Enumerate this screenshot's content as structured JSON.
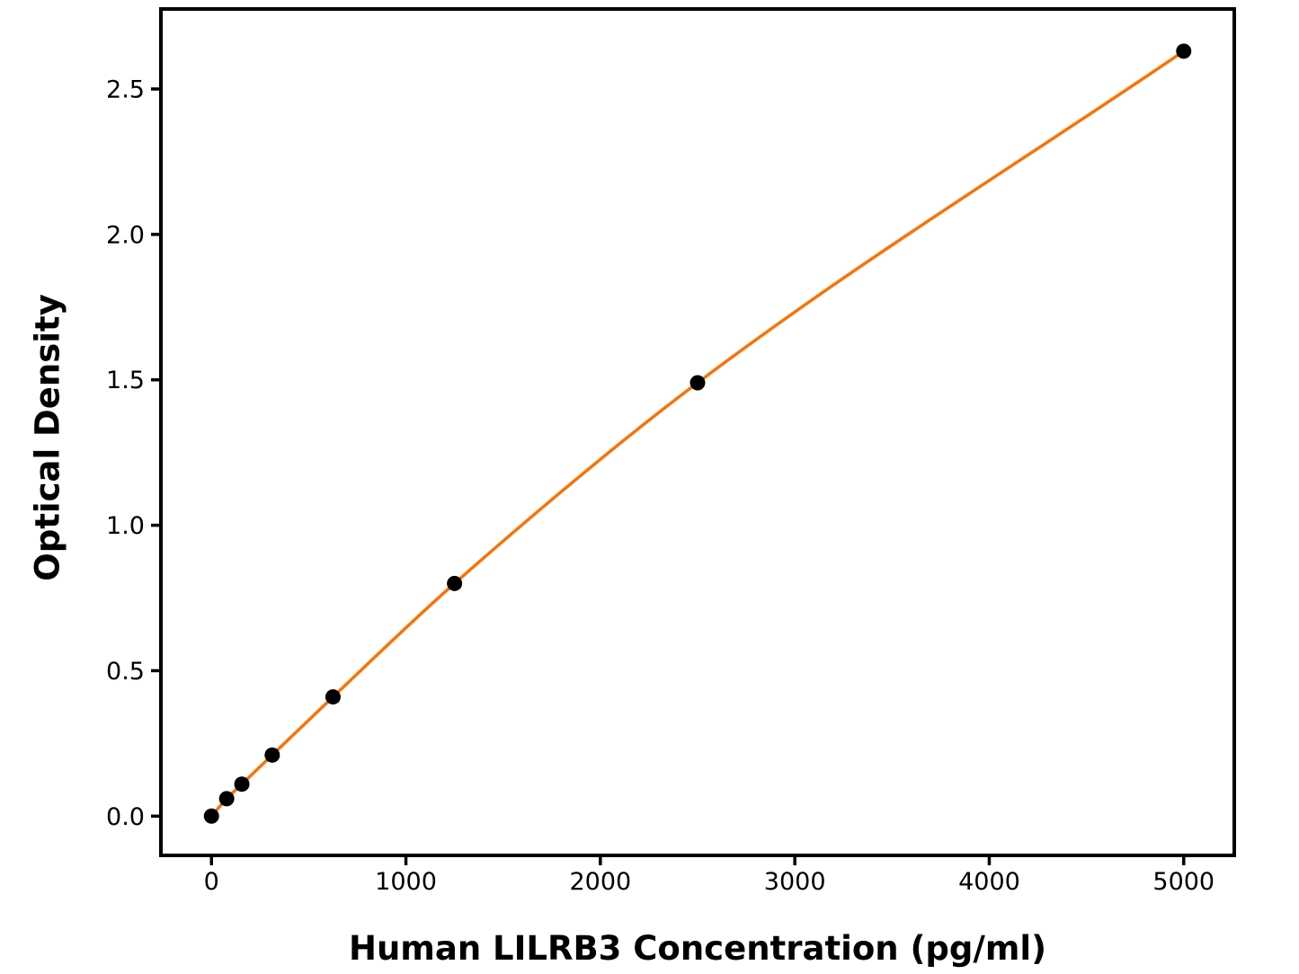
{
  "figure": {
    "background": "#ffffff"
  },
  "chart_data": {
    "type": "scatter",
    "title": "",
    "xlabel": "Human LILRB3 Concentration (pg/ml)",
    "ylabel": "Optical Density",
    "series": [
      {
        "name": "standard-curve",
        "points": [
          {
            "x": 0,
            "y": 0.0
          },
          {
            "x": 78.13,
            "y": 0.06
          },
          {
            "x": 156.25,
            "y": 0.11
          },
          {
            "x": 312.5,
            "y": 0.21
          },
          {
            "x": 625,
            "y": 0.41
          },
          {
            "x": 1250,
            "y": 0.8
          },
          {
            "x": 2500,
            "y": 1.49
          },
          {
            "x": 5000,
            "y": 2.63
          }
        ]
      }
    ],
    "x_tick_labels": [
      "0",
      "1000",
      "2000",
      "3000",
      "4000",
      "5000"
    ],
    "x_tick_values": [
      0,
      1000,
      2000,
      3000,
      4000,
      5000
    ],
    "y_tick_labels": [
      "0.0",
      "0.5",
      "1.0",
      "1.5",
      "2.0",
      "2.5"
    ],
    "y_tick_values": [
      0,
      0.5,
      1.0,
      1.5,
      2.0,
      2.5
    ],
    "xlim": [
      -260,
      5260
    ],
    "ylim": [
      -0.135,
      2.775
    ],
    "grid": false,
    "legend_position": "none",
    "curve_color": "#F97306",
    "marker_color": "#000000",
    "axis_color": "#000000"
  }
}
